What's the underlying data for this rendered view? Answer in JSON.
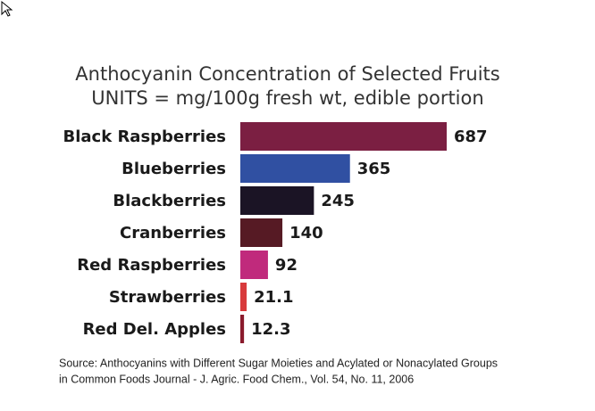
{
  "chart_data": {
    "type": "bar",
    "orientation": "horizontal",
    "title": "Anthocyanin Concentration of Selected Fruits",
    "subtitle": "UNITS = mg/100g fresh wt, edible portion",
    "categories": [
      "Black Raspberries",
      "Blueberries",
      "Blackberries",
      "Cranberries",
      "Red Raspberries",
      "Strawberries",
      "Red Del. Apples"
    ],
    "values": [
      687,
      365,
      245,
      140,
      92,
      21.1,
      12.3
    ],
    "colors": [
      "#7b1f42",
      "#3050a2",
      "#1b1425",
      "#561a24",
      "#c02a7c",
      "#d83a3c",
      "#8a1a2c"
    ],
    "source": [
      "Source: Anthocyanins with Different Sugar Moieties and Acylated or Nonacylated Groups",
      "in Common Foods Journal - J. Agric. Food Chem., Vol. 54, No. 11, 2006"
    ]
  }
}
